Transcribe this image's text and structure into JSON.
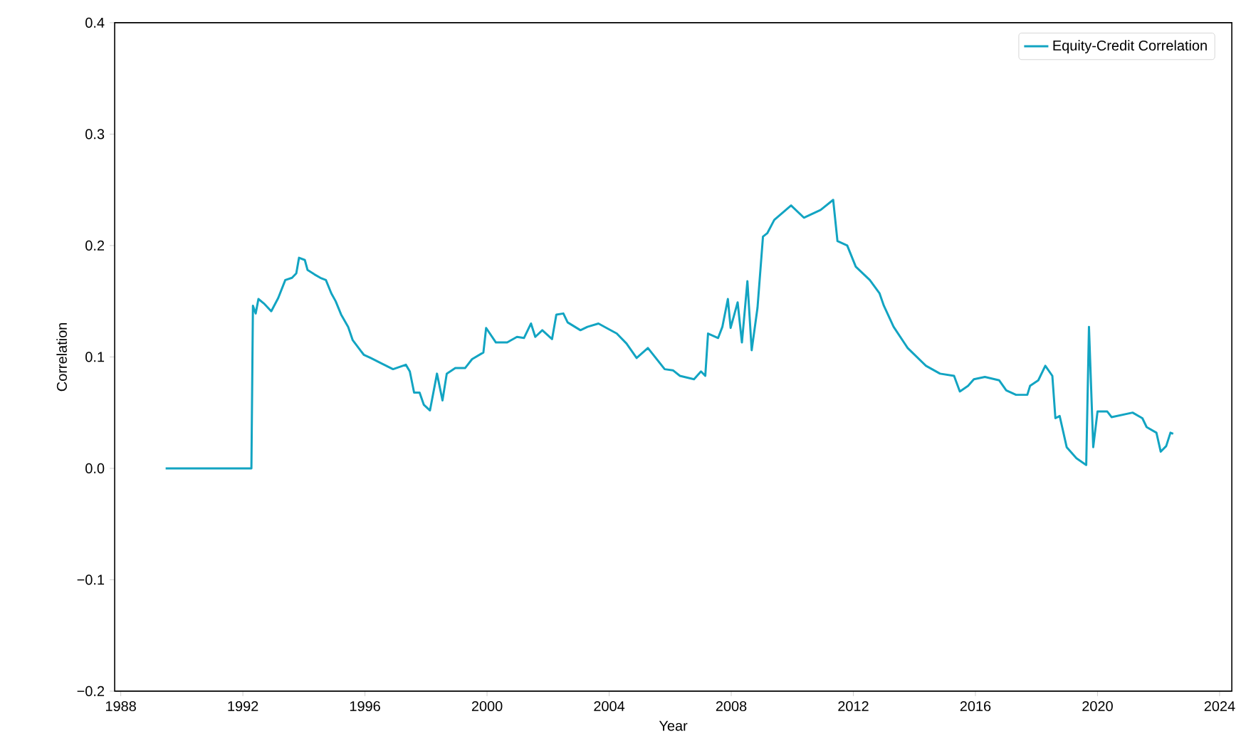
{
  "chart_data": {
    "type": "line",
    "xlabel": "Year",
    "ylabel": "Correlation",
    "xlim": [
      1987.8,
      2024.4
    ],
    "ylim": [
      -0.2,
      0.4
    ],
    "xticks": [
      1988,
      1992,
      1996,
      2000,
      2004,
      2008,
      2012,
      2016,
      2020,
      2024
    ],
    "yticks": [
      {
        "value": -0.2,
        "label": "−0.2"
      },
      {
        "value": -0.1,
        "label": "−0.1"
      },
      {
        "value": 0.0,
        "label": "0.0"
      },
      {
        "value": 0.1,
        "label": "0.1"
      },
      {
        "value": 0.2,
        "label": "0.2"
      },
      {
        "value": 0.3,
        "label": "0.3"
      },
      {
        "value": 0.4,
        "label": "0.4"
      }
    ],
    "legend": "top right",
    "grid": false,
    "marker": "none",
    "line_style": "solid",
    "series": [
      {
        "name": "Equity-Credit Correlation",
        "color": "#12a4c2",
        "x": [
          1989.47,
          1992.28,
          1992.33,
          1992.42,
          1992.51,
          1992.69,
          1992.93,
          1993.16,
          1993.39,
          1993.61,
          1993.75,
          1993.84,
          1994.03,
          1994.12,
          1994.35,
          1994.54,
          1994.72,
          1994.9,
          1995.04,
          1995.22,
          1995.45,
          1995.6,
          1995.96,
          1996.19,
          1996.92,
          1997.34,
          1997.47,
          1997.61,
          1997.79,
          1997.93,
          1998.13,
          1998.36,
          1998.54,
          1998.68,
          1998.96,
          1999.28,
          1999.51,
          1999.88,
          1999.97,
          2000.29,
          2000.66,
          2000.98,
          2001.21,
          2001.44,
          2001.58,
          2001.81,
          2002.13,
          2002.27,
          2002.5,
          2002.64,
          2003.06,
          2003.29,
          2003.65,
          2003.98,
          2004.25,
          2004.57,
          2004.9,
          2005.27,
          2005.82,
          2006.09,
          2006.32,
          2006.78,
          2007.01,
          2007.15,
          2007.24,
          2007.57,
          2007.71,
          2007.89,
          2007.98,
          2008.21,
          2008.35,
          2008.53,
          2008.67,
          2008.86,
          2009.04,
          2009.18,
          2009.41,
          2009.96,
          2010.38,
          2010.93,
          2011.34,
          2011.48,
          2011.8,
          2012.08,
          2012.54,
          2012.86,
          2013.0,
          2013.32,
          2013.78,
          2014.38,
          2014.84,
          2015.3,
          2015.49,
          2015.76,
          2015.95,
          2016.31,
          2016.78,
          2017.01,
          2017.33,
          2017.7,
          2017.79,
          2018.06,
          2018.29,
          2018.52,
          2018.62,
          2018.76,
          2018.99,
          2019.31,
          2019.63,
          2019.72,
          2019.86,
          2020.0,
          2020.32,
          2020.46,
          2021.15,
          2021.47,
          2021.61,
          2021.93,
          2022.07,
          2022.25,
          2022.39,
          2022.48
        ],
        "values": [
          0.0,
          0.0,
          0.146,
          0.139,
          0.152,
          0.148,
          0.141,
          0.153,
          0.169,
          0.171,
          0.175,
          0.189,
          0.187,
          0.178,
          0.174,
          0.171,
          0.169,
          0.157,
          0.15,
          0.138,
          0.127,
          0.115,
          0.102,
          0.099,
          0.089,
          0.093,
          0.087,
          0.068,
          0.068,
          0.057,
          0.052,
          0.085,
          0.061,
          0.085,
          0.09,
          0.09,
          0.098,
          0.104,
          0.126,
          0.113,
          0.113,
          0.118,
          0.117,
          0.13,
          0.118,
          0.124,
          0.116,
          0.138,
          0.139,
          0.131,
          0.124,
          0.127,
          0.13,
          0.125,
          0.121,
          0.112,
          0.099,
          0.108,
          0.089,
          0.088,
          0.083,
          0.08,
          0.087,
          0.083,
          0.121,
          0.117,
          0.127,
          0.152,
          0.126,
          0.149,
          0.113,
          0.168,
          0.106,
          0.144,
          0.208,
          0.211,
          0.223,
          0.236,
          0.225,
          0.232,
          0.241,
          0.204,
          0.2,
          0.181,
          0.169,
          0.157,
          0.146,
          0.127,
          0.108,
          0.092,
          0.085,
          0.083,
          0.069,
          0.074,
          0.08,
          0.082,
          0.079,
          0.07,
          0.066,
          0.066,
          0.074,
          0.079,
          0.092,
          0.083,
          0.045,
          0.047,
          0.019,
          0.009,
          0.003,
          0.127,
          0.019,
          0.051,
          0.051,
          0.046,
          0.05,
          0.045,
          0.037,
          0.032,
          0.015,
          0.02,
          0.032,
          0.031
        ]
      }
    ]
  }
}
